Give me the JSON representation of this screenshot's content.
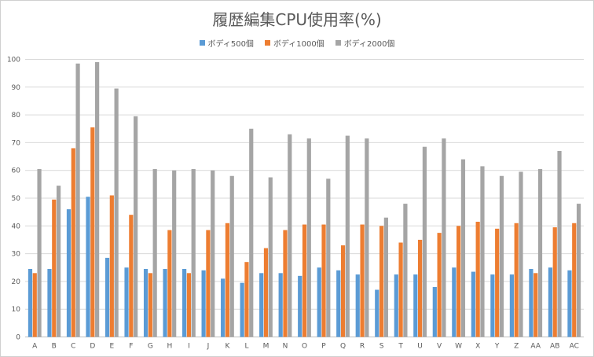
{
  "colors": {
    "series1": "#5b9bd5",
    "series2": "#ed7d31",
    "series3": "#a5a5a5",
    "grid": "#d9d9d9",
    "text": "#595959"
  },
  "chart_data": {
    "type": "bar",
    "title": "履歴編集CPU使用率(%)",
    "xlabel": "",
    "ylabel": "",
    "ylim": [
      0,
      100
    ],
    "yticks": [
      "0",
      "10",
      "20",
      "30",
      "40",
      "50",
      "60",
      "70",
      "80",
      "90",
      "100"
    ],
    "grid": true,
    "legend_position": "top",
    "categories": [
      "A",
      "B",
      "C",
      "D",
      "E",
      "F",
      "G",
      "H",
      "I",
      "J",
      "K",
      "L",
      "M",
      "N",
      "O",
      "P",
      "Q",
      "R",
      "S",
      "T",
      "U",
      "V",
      "W",
      "X",
      "Y",
      "Z",
      "AA",
      "AB",
      "AC"
    ],
    "series": [
      {
        "name": "ボディ500個",
        "values": [
          24.5,
          24.5,
          46,
          50.5,
          28.5,
          25,
          24.5,
          24.5,
          24.5,
          24,
          21,
          19.5,
          23,
          23,
          22,
          25,
          24,
          22.5,
          17,
          22.5,
          22.5,
          18,
          25,
          23.5,
          22.5,
          22.5,
          24.5,
          25,
          24
        ]
      },
      {
        "name": "ボディ1000個",
        "values": [
          23,
          49.5,
          68,
          75.5,
          51,
          44,
          23,
          38.5,
          23,
          38.5,
          41,
          27,
          32,
          38.5,
          40.5,
          40.5,
          33,
          40.5,
          40,
          34,
          35,
          37.5,
          40,
          41.5,
          39,
          41,
          23,
          39.5,
          41
        ]
      },
      {
        "name": "ボディ2000個",
        "values": [
          60.5,
          54.5,
          98.5,
          99,
          89.5,
          79.5,
          60.5,
          60,
          60.5,
          60,
          58,
          75,
          57.5,
          73,
          71.5,
          57,
          72.5,
          71.5,
          43,
          48,
          68.5,
          71.5,
          64,
          61.5,
          58,
          59.5,
          60.5,
          67,
          48
        ]
      }
    ]
  }
}
